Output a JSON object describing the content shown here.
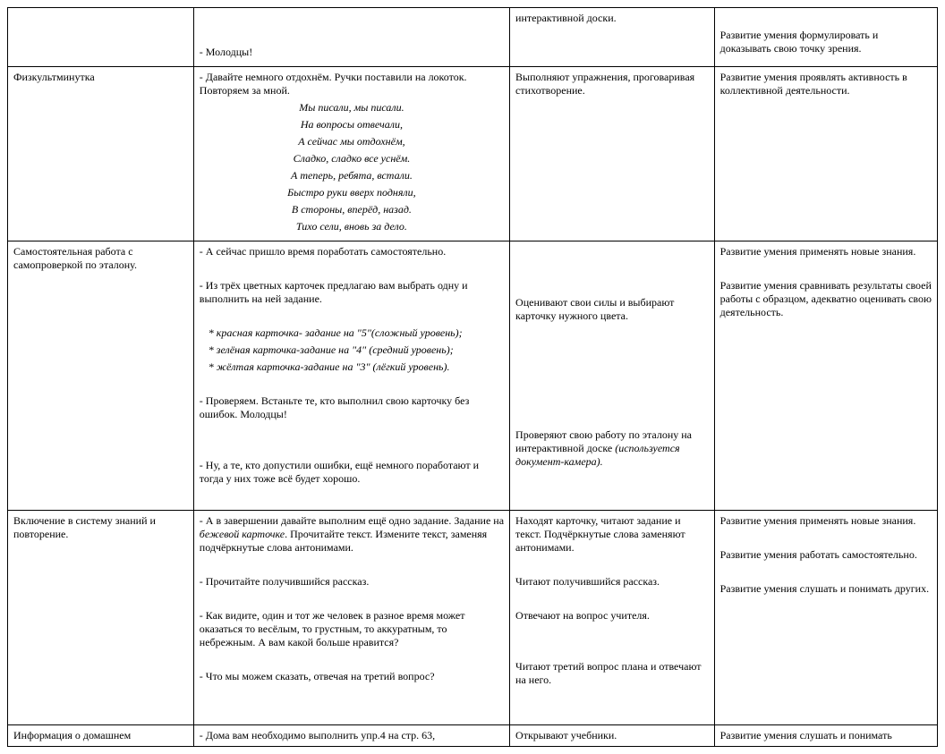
{
  "rows": [
    {
      "c1": "",
      "c2_plain": "- Молодцы!",
      "c3": "интерактивной доски.",
      "c4": "Развитие умения формулировать и доказывать свою точку зрения."
    },
    {
      "c1": "Физкультминутка",
      "c2_lead": "- Давайте немного отдохнём. Ручки поставили на локоток. Повторяем за мной.",
      "c2_poem": [
        "Мы писали, мы писали.",
        "На вопросы отвечали,",
        "А сейчас мы отдохнём,",
        "Сладко, сладко все уснём.",
        "А теперь, ребята, встали.",
        "Быстро руки вверх подняли,",
        "В стороны, вперёд, назад.",
        "Тихо сели, вновь за дело."
      ],
      "c3": "Выполняют упражнения, проговаривая стихотворение.",
      "c4": "Развитие умения проявлять активность в коллективной деятельности."
    },
    {
      "c1": "Самостоятельная работа с самопроверкой по эталону.",
      "c2_p1": "- А сейчас пришло время поработать самостоятельно.",
      "c2_p2": " - Из трёх цветных карточек предлагаю вам выбрать одну и выполнить на ней задание.",
      "c2_bullets": [
        "* красная карточка- задание на \"5\"(сложный уровень);",
        "* зелёная карточка-задание на \"4\" (средний уровень);",
        "* жёлтая карточка-задание на \"3\" (лёгкий уровень)."
      ],
      "c2_p3": " - Проверяем. Встаньте те, кто выполнил свою карточку без ошибок. Молодцы!",
      "c2_p4": " - Ну, а те, кто допустили ошибки, ещё немного поработают и тогда у них тоже всё будет хорошо.",
      "c3_p1": "Оценивают свои силы и выбирают карточку нужного цвета.",
      "c3_p2a": "Проверяют свою работу по эталону на интерактивной доске ",
      "c3_p2b": "(используется документ-камера).",
      "c4_p1": "Развитие умения применять новые знания.",
      "c4_p2": "Развитие умения сравнивать результаты своей работы с образцом, адекватно оценивать свою деятельность."
    },
    {
      "c1": "Включение в систему знаний и повторение.",
      "c2_p1a": "- А в завершении давайте выполним ещё одно задание. Задание на ",
      "c2_p1b": "бежевой карточке",
      "c2_p1c": ". Прочитайте текст. Измените текст, заменяя подчёркнутые слова антонимами.",
      "c2_p2": " - Прочитайте получившийся рассказ.",
      "c2_p3": " - Как видите, один и тот же человек в разное время может оказаться то весёлым, то грустным, то аккуратным, то небрежным. А вам какой больше нравится?",
      "c2_p4": " - Что мы можем сказать, отвечая на третий вопрос?",
      "c3_p1": "Находят карточку, читают задание и текст. Подчёркнутые слова заменяют антонимами.",
      "c3_p2": "Читают получившийся рассказ.",
      "c3_p3": "Отвечают на вопрос учителя.",
      "c3_p4": "Читают третий вопрос плана и отвечают на него.",
      "c4_p1": "Развитие умения применять новые знания.",
      "c4_p2": "Развитие умения работать самостоятельно.",
      "c4_p3": "Развитие умения слушать и понимать других."
    },
    {
      "c1": "Информация о домашнем",
      "c2": "- Дома вам необходимо выполнить упр.4 на стр. 63,",
      "c3": "Открывают учебники.",
      "c4": "Развитие умения слушать и понимать"
    }
  ]
}
